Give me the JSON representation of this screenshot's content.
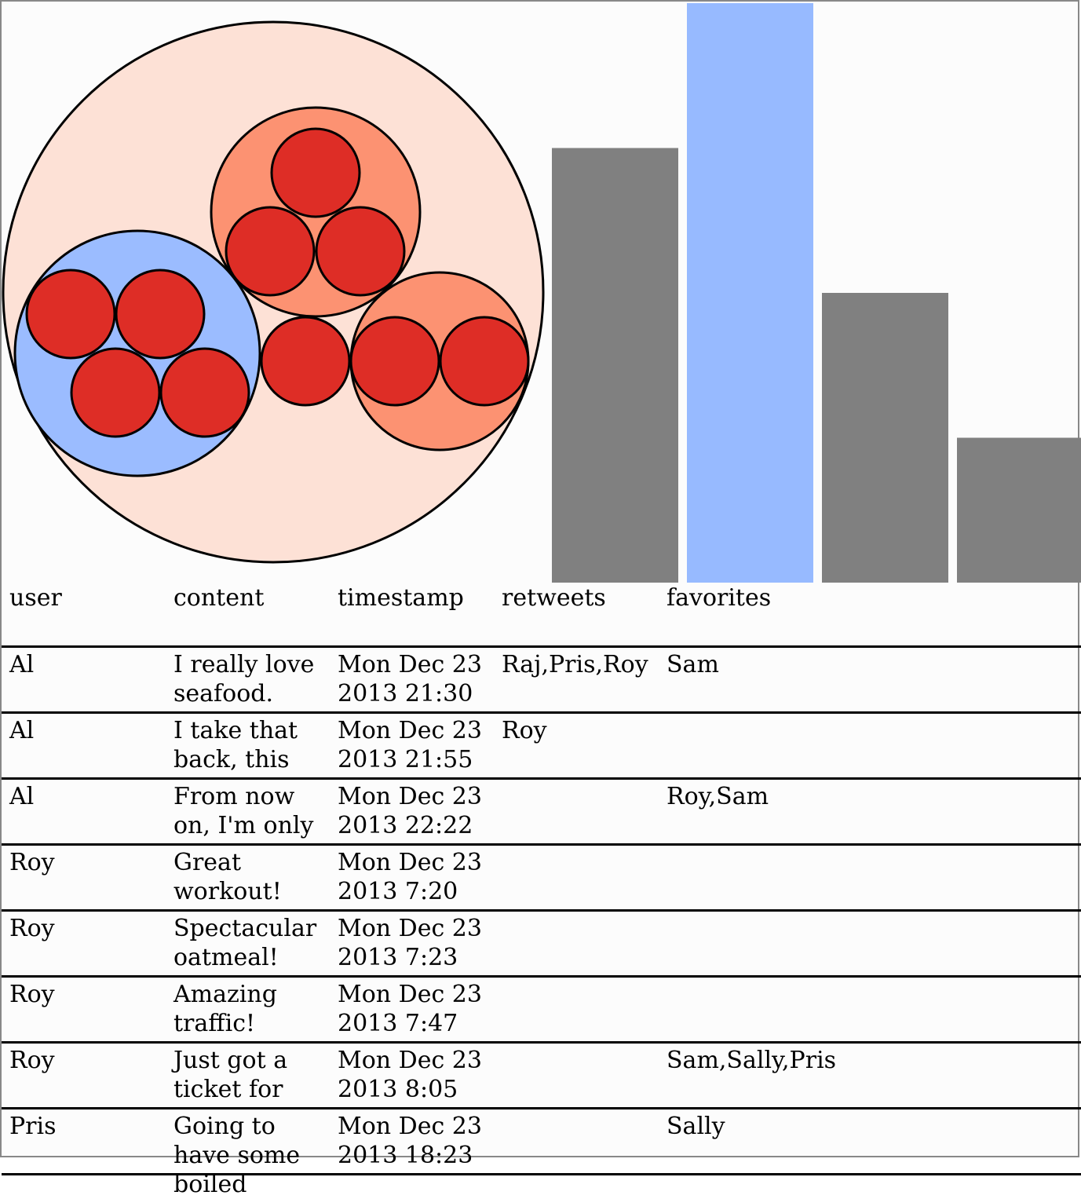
{
  "colors": {
    "root_circle": "#fde1d6",
    "group_selected": "#9bbcff",
    "group": "#fc9272",
    "leaf": "#de2d26",
    "bar": "#808080",
    "bar_selected": "#97baff"
  },
  "chart_data": [
    {
      "type": "circle-packing",
      "root": {
        "children": [
          {
            "selected": true,
            "children": [
              {},
              {},
              {},
              {}
            ]
          },
          {
            "selected": false,
            "children": [
              {},
              {},
              {}
            ]
          },
          {
            "selected": false,
            "children": [
              {},
              {}
            ]
          },
          {
            "leaf": true
          }
        ]
      }
    },
    {
      "type": "bar",
      "values": [
        3,
        4,
        2,
        1
      ],
      "selected_index": 1,
      "ylim": [
        0,
        4
      ]
    }
  ],
  "table": {
    "columns": [
      "user",
      "content",
      "timestamp",
      "retweets",
      "favorites"
    ],
    "rows": [
      [
        "Al",
        "I really love seafood.",
        "Mon Dec 23 2013 21:30",
        "Raj,Pris,Roy",
        "Sam"
      ],
      [
        "Al",
        "I take that back, this",
        "Mon Dec 23 2013 21:55",
        "Roy",
        ""
      ],
      [
        "Al",
        "From now on, I'm only",
        "Mon Dec 23 2013 22:22",
        "",
        "Roy,Sam"
      ],
      [
        "Roy",
        "Great workout!",
        "Mon Dec 23 2013 7:20",
        "",
        ""
      ],
      [
        "Roy",
        "Spectacular oatmeal!",
        "Mon Dec 23 2013 7:23",
        "",
        ""
      ],
      [
        "Roy",
        "Amazing traffic!",
        "Mon Dec 23 2013 7:47",
        "",
        ""
      ],
      [
        "Roy",
        "Just got a ticket for",
        "Mon Dec 23 2013 8:05",
        "",
        "Sam,Sally,Pris"
      ],
      [
        "Pris",
        "Going to have some boiled",
        "Mon Dec 23 2013 18:23",
        "",
        "Sally"
      ]
    ]
  }
}
